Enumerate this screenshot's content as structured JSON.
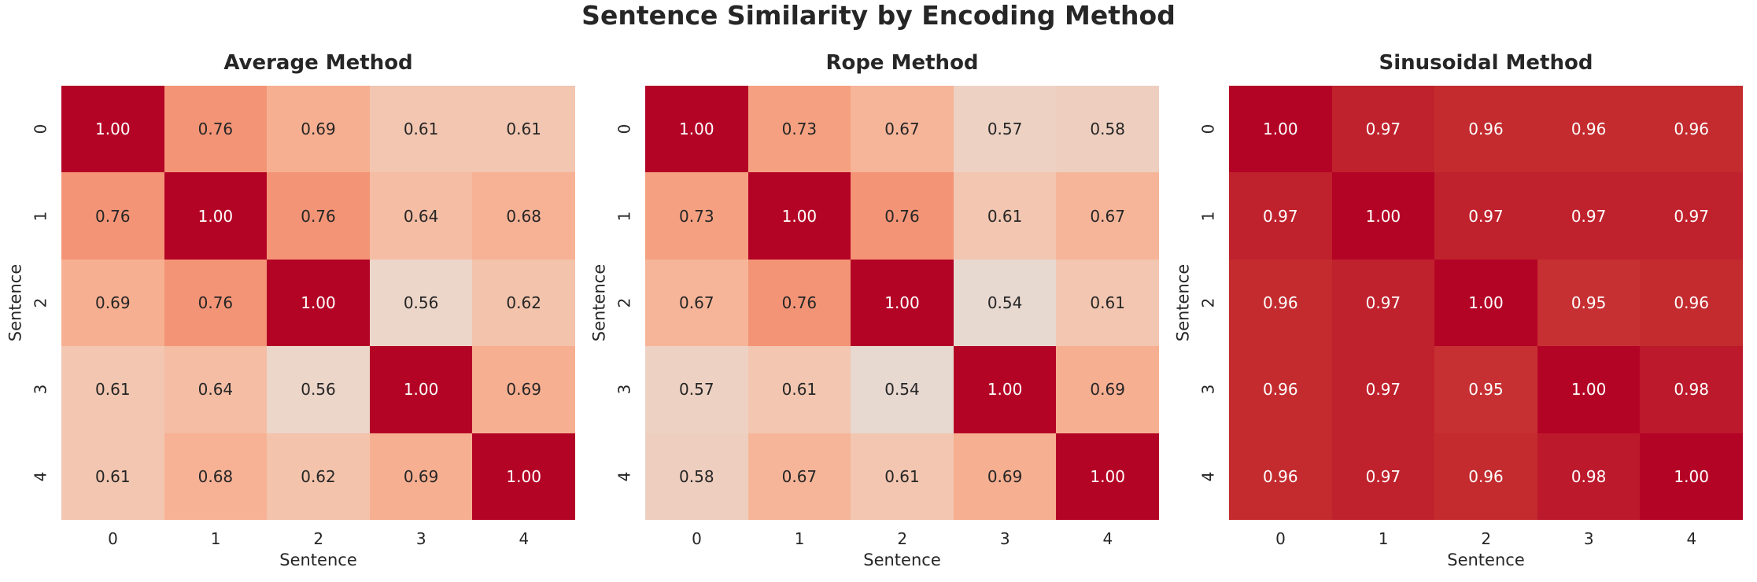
{
  "figure": {
    "title": "Sentence Similarity by Encoding Method",
    "background": "#ffffff",
    "text_color": "#262626"
  },
  "chart_data": [
    {
      "type": "heatmap",
      "title": "Average Method",
      "xlabel": "Sentence",
      "ylabel": "Sentence",
      "x_ticks": [
        "0",
        "1",
        "2",
        "3",
        "4"
      ],
      "y_ticks": [
        "0",
        "1",
        "2",
        "3",
        "4"
      ],
      "value_format": "2-decimals",
      "values": [
        [
          1.0,
          0.76,
          0.69,
          0.61,
          0.61
        ],
        [
          0.76,
          1.0,
          0.76,
          0.64,
          0.68
        ],
        [
          0.69,
          0.76,
          1.0,
          0.56,
          0.62
        ],
        [
          0.61,
          0.64,
          0.56,
          1.0,
          0.69
        ],
        [
          0.61,
          0.68,
          0.62,
          0.69,
          1.0
        ]
      ]
    },
    {
      "type": "heatmap",
      "title": "Rope Method",
      "xlabel": "Sentence",
      "ylabel": "Sentence",
      "x_ticks": [
        "0",
        "1",
        "2",
        "3",
        "4"
      ],
      "y_ticks": [
        "0",
        "1",
        "2",
        "3",
        "4"
      ],
      "value_format": "2-decimals",
      "values": [
        [
          1.0,
          0.73,
          0.67,
          0.57,
          0.58
        ],
        [
          0.73,
          1.0,
          0.76,
          0.61,
          0.67
        ],
        [
          0.67,
          0.76,
          1.0,
          0.54,
          0.61
        ],
        [
          0.57,
          0.61,
          0.54,
          1.0,
          0.69
        ],
        [
          0.58,
          0.67,
          0.61,
          0.69,
          1.0
        ]
      ]
    },
    {
      "type": "heatmap",
      "title": "Sinusoidal Method",
      "xlabel": "Sentence",
      "ylabel": "Sentence",
      "x_ticks": [
        "0",
        "1",
        "2",
        "3",
        "4"
      ],
      "y_ticks": [
        "0",
        "1",
        "2",
        "3",
        "4"
      ],
      "value_format": "2-decimals",
      "values": [
        [
          1.0,
          0.97,
          0.96,
          0.96,
          0.96
        ],
        [
          0.97,
          1.0,
          0.97,
          0.97,
          0.97
        ],
        [
          0.96,
          0.97,
          1.0,
          0.95,
          0.96
        ],
        [
          0.96,
          0.97,
          0.95,
          1.0,
          0.98
        ],
        [
          0.96,
          0.97,
          0.96,
          0.98,
          1.0
        ]
      ]
    }
  ],
  "colormap": {
    "name": "coolwarm",
    "white_text_threshold": 0.95,
    "annotation_dark_color": "#262626",
    "annotation_light_color": "#ffffff",
    "stops": [
      [
        0.5,
        "#dddddd"
      ],
      [
        0.56,
        "#ecd5c9"
      ],
      [
        0.62,
        "#f3c3ab"
      ],
      [
        0.68,
        "#f7b295"
      ],
      [
        0.74,
        "#f59d7d"
      ],
      [
        0.8,
        "#ef8268"
      ],
      [
        0.86,
        "#e36352"
      ],
      [
        0.92,
        "#d23f40"
      ],
      [
        0.96,
        "#c32b2e"
      ],
      [
        0.98,
        "#bc192c"
      ],
      [
        1.0,
        "#b40426"
      ]
    ]
  }
}
